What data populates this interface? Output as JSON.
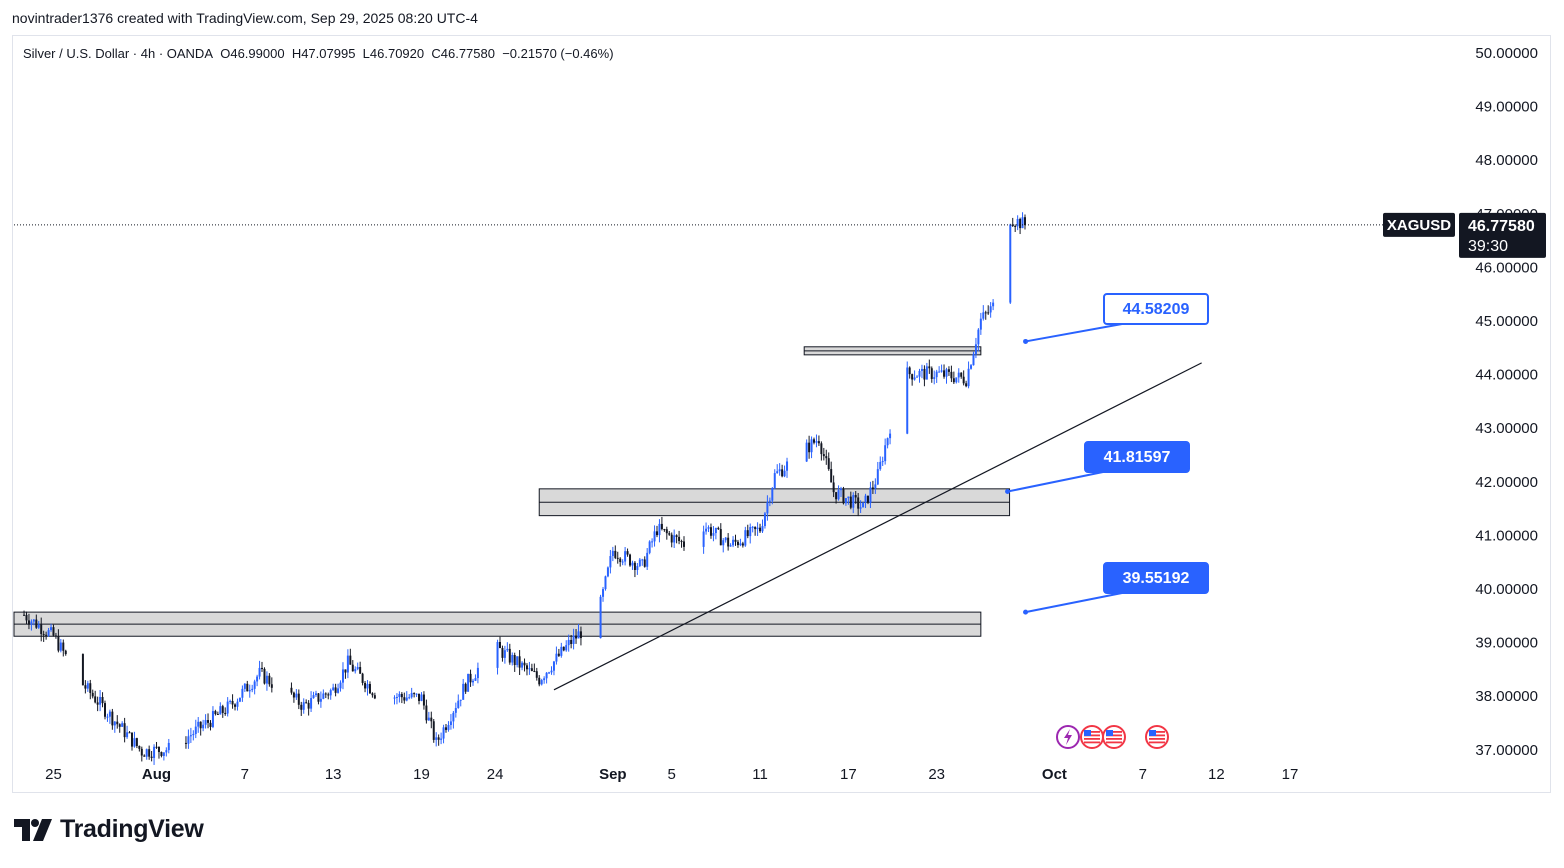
{
  "header": {
    "attribution": "novintrader1376 created with TradingView.com, Sep 29, 2025 08:20 UTC-4"
  },
  "legend": {
    "symbol": "Silver / U.S. Dollar · 4h · OANDA",
    "open": "O46.99000",
    "high": "H47.07995",
    "low": "L46.70920",
    "close": "C46.77580",
    "change": "−0.21570 (−0.46%)"
  },
  "price_tag": {
    "ticker": "XAGUSD",
    "price": "46.77580",
    "countdown": "39:30"
  },
  "footer": {
    "brand": "TradingView"
  },
  "colors": {
    "up": "#2962ff",
    "down": "#131722",
    "zone_fill": "#d9d9d9",
    "callout_fill": "#2962ff",
    "grid_text": "#131722"
  },
  "chart_data": {
    "type": "candlestick",
    "instrument": "XAGUSD",
    "timeframe": "4h",
    "ylim": [
      36.9,
      50.3
    ],
    "y_ticks": [
      "50.00000",
      "49.00000",
      "48.00000",
      "47.00000",
      "46.00000",
      "45.00000",
      "44.00000",
      "43.00000",
      "42.00000",
      "41.00000",
      "40.00000",
      "39.00000",
      "38.00000",
      "37.00000"
    ],
    "x_ticks": [
      "25",
      "Aug",
      "7",
      "13",
      "19",
      "24",
      "Sep",
      "5",
      "11",
      "17",
      "23",
      "Oct",
      "7",
      "12",
      "17"
    ],
    "key_points": [
      {
        "date": "Jul 23",
        "value": 39.5
      },
      {
        "date": "Jul 25",
        "value": 39.1
      },
      {
        "date": "Jul 27",
        "value": 38.2
      },
      {
        "date": "Jul 31",
        "value": 36.95
      },
      {
        "date": "Aug 2",
        "value": 37.0
      },
      {
        "date": "Aug 6",
        "value": 37.8
      },
      {
        "date": "Aug 8",
        "value": 38.4
      },
      {
        "date": "Aug 11",
        "value": 37.8
      },
      {
        "date": "Aug 13",
        "value": 38.1
      },
      {
        "date": "Aug 14",
        "value": 38.6
      },
      {
        "date": "Aug 16",
        "value": 38.0
      },
      {
        "date": "Aug 19",
        "value": 37.95
      },
      {
        "date": "Aug 20",
        "value": 37.1
      },
      {
        "date": "Aug 22",
        "value": 38.2
      },
      {
        "date": "Aug 24",
        "value": 38.9
      },
      {
        "date": "Aug 27",
        "value": 38.3
      },
      {
        "date": "Aug 29",
        "value": 38.95
      },
      {
        "date": "Aug 31",
        "value": 39.5
      },
      {
        "date": "Sep 1",
        "value": 40.7
      },
      {
        "date": "Sep 3",
        "value": 40.4
      },
      {
        "date": "Sep 4",
        "value": 41.1
      },
      {
        "date": "Sep 6",
        "value": 40.8
      },
      {
        "date": "Sep 7",
        "value": 41.2
      },
      {
        "date": "Sep 9",
        "value": 40.8
      },
      {
        "date": "Sep 11",
        "value": 41.1
      },
      {
        "date": "Sep 12",
        "value": 42.1
      },
      {
        "date": "Sep 15",
        "value": 42.8
      },
      {
        "date": "Sep 16",
        "value": 41.8
      },
      {
        "date": "Sep 18",
        "value": 41.5
      },
      {
        "date": "Sep 19",
        "value": 42.1
      },
      {
        "date": "Sep 20",
        "value": 43.2
      },
      {
        "date": "Sep 21",
        "value": 44.0
      },
      {
        "date": "Sep 23",
        "value": 44.0
      },
      {
        "date": "Sep 25",
        "value": 43.9
      },
      {
        "date": "Sep 26",
        "value": 45.0
      },
      {
        "date": "Sep 27",
        "value": 45.3
      },
      {
        "date": "Sep 28",
        "value": 46.9
      },
      {
        "date": "Sep 29",
        "value": 46.7758
      }
    ],
    "annotations": {
      "zones": [
        {
          "from": 44.35,
          "to": 44.5,
          "start": "Sep 14",
          "end": "Sep 26"
        },
        {
          "from": 41.35,
          "to": 41.85,
          "start": "Aug 27",
          "end": "Sep 27"
        },
        {
          "from": 39.1,
          "to": 39.55,
          "start": "Jul 23",
          "end": "Sep 26"
        }
      ],
      "trendline": {
        "start": {
          "date": "Aug 28",
          "value": 38.1
        },
        "end": {
          "date": "Oct 11",
          "value": 44.2
        }
      },
      "callouts": [
        {
          "label": "44.58209",
          "style": "outline",
          "anchor_date": "Sep 27",
          "anchor_value": 44.6
        },
        {
          "label": "41.81597",
          "style": "filled",
          "anchor_date": "Sep 27",
          "anchor_value": 41.8
        },
        {
          "label": "39.55192",
          "style": "filled",
          "anchor_date": "Sep 27",
          "anchor_value": 39.55
        }
      ],
      "current_price": 46.7758
    }
  }
}
